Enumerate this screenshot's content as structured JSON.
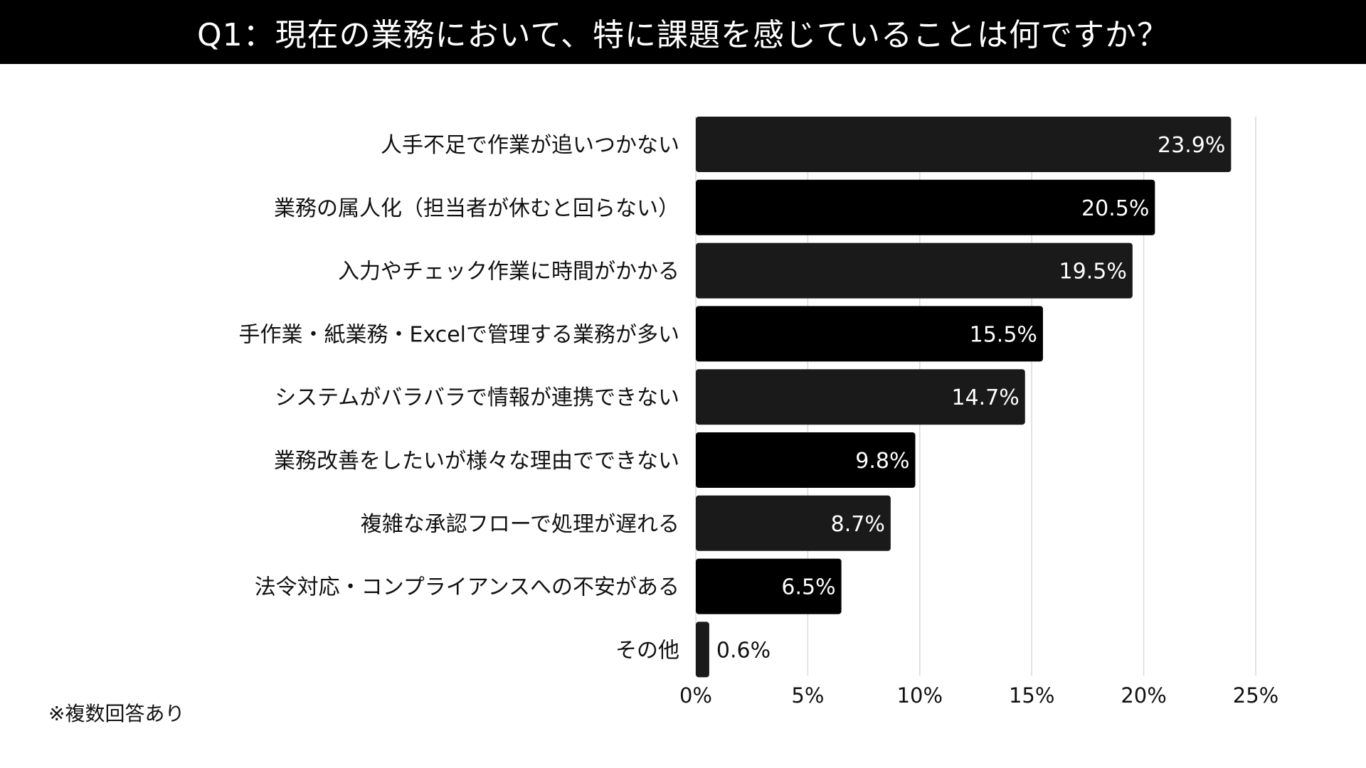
{
  "title": "Q1：現在の業務において、特に課題を感じていることは何ですか？",
  "footnote": "※複数回答あり",
  "colors": {
    "title_bg": "#000000",
    "title_text": "#ffffff",
    "bar_dark": "#1b1a1a",
    "bar_black": "#000000",
    "grid": "#d9d9d9",
    "label_text": "#111111",
    "value_inside": "#ffffff",
    "value_outside": "#111111"
  },
  "chart_data": {
    "type": "bar",
    "orientation": "horizontal",
    "categories": [
      "人手不足で作業が追いつかない",
      "業務の属人化（担当者が休むと回らない）",
      "入力やチェック作業に時間がかかる",
      "手作業・紙業務・Excelで管理する業務が多い",
      "システムがバラバラで情報が連携できない",
      "業務改善をしたいが様々な理由でできない",
      "複雑な承認フローで処理が遅れる",
      "法令対応・コンプライアンスへの不安がある",
      "その他"
    ],
    "values": [
      23.9,
      20.5,
      19.5,
      15.5,
      14.7,
      9.8,
      8.7,
      6.5,
      0.6
    ],
    "value_labels": [
      "23.9%",
      "20.5%",
      "19.5%",
      "15.5%",
      "14.7%",
      "9.8%",
      "8.7%",
      "6.5%",
      "0.6%"
    ],
    "xlim": [
      0,
      25
    ],
    "xticks": [
      "0%",
      "5%",
      "10%",
      "15%",
      "20%",
      "25%"
    ],
    "grid": true,
    "legend": "none",
    "title": "",
    "xlabel": "",
    "ylabel": ""
  }
}
